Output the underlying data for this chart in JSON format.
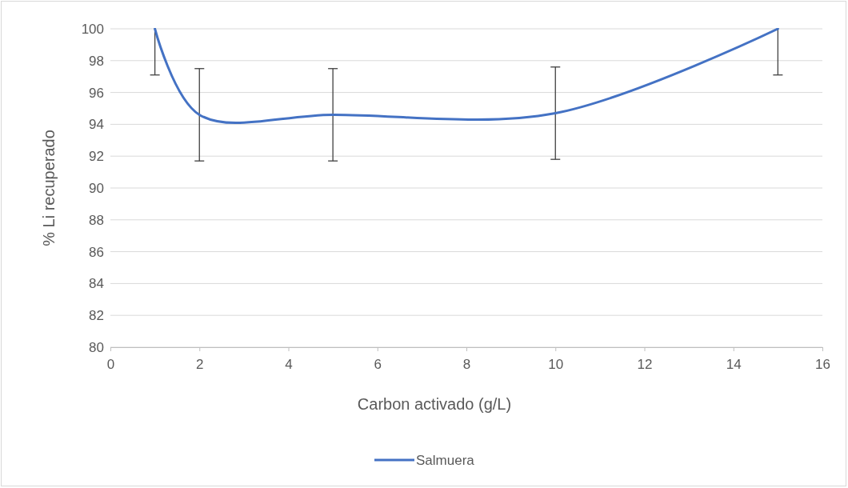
{
  "chart_data": {
    "type": "line",
    "xlabel": "Carbon activado (g/L)",
    "ylabel": "% Li recuperado",
    "x": [
      1,
      2,
      5,
      10,
      15
    ],
    "series": [
      {
        "name": "Salmuera",
        "color": "#4472c4",
        "values": [
          100,
          94.6,
          94.6,
          94.7,
          100
        ],
        "errors": [
          [
            97.1,
            100
          ],
          2.9,
          2.9,
          2.9,
          [
            97.1,
            100
          ]
        ]
      }
    ],
    "xlim": [
      0,
      16
    ],
    "xticks": [
      0,
      2,
      4,
      6,
      8,
      10,
      12,
      14,
      16
    ],
    "ylim": [
      80,
      100
    ],
    "yticks": [
      80,
      82,
      84,
      86,
      88,
      90,
      92,
      94,
      96,
      98,
      100
    ],
    "grid": "y",
    "legend": "bottom",
    "marker": "none",
    "line_style": "solid"
  }
}
